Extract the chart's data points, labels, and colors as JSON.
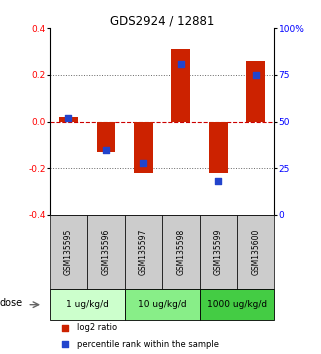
{
  "title": "GDS2924 / 12881",
  "samples": [
    "GSM135595",
    "GSM135596",
    "GSM135597",
    "GSM135598",
    "GSM135599",
    "GSM135600"
  ],
  "log2_ratio": [
    0.02,
    -0.13,
    -0.22,
    0.31,
    -0.22,
    0.26
  ],
  "percentile_rank": [
    52,
    35,
    28,
    81,
    18,
    75
  ],
  "bar_color": "#cc2200",
  "square_color": "#2244cc",
  "ylim_left": [
    -0.4,
    0.4
  ],
  "ylim_right": [
    0,
    100
  ],
  "yticks_left": [
    -0.4,
    -0.2,
    0.0,
    0.2,
    0.4
  ],
  "yticks_right": [
    0,
    25,
    50,
    75,
    100
  ],
  "ytick_labels_right": [
    "0",
    "25",
    "50",
    "75",
    "100%"
  ],
  "dose_groups": [
    {
      "label": "1 ug/kg/d",
      "samples": [
        0,
        1
      ],
      "color": "#ccffcc"
    },
    {
      "label": "10 ug/kg/d",
      "samples": [
        2,
        3
      ],
      "color": "#88ee88"
    },
    {
      "label": "1000 ug/kg/d",
      "samples": [
        4,
        5
      ],
      "color": "#44cc44"
    }
  ],
  "dose_label": "dose",
  "legend_entries": [
    {
      "label": "log2 ratio",
      "color": "#cc2200"
    },
    {
      "label": "percentile rank within the sample",
      "color": "#2244cc"
    }
  ],
  "bar_width": 0.5,
  "grid_color": "#666666",
  "zero_line_color": "#cc0000",
  "background_color": "#ffffff",
  "sample_box_color": "#cccccc"
}
